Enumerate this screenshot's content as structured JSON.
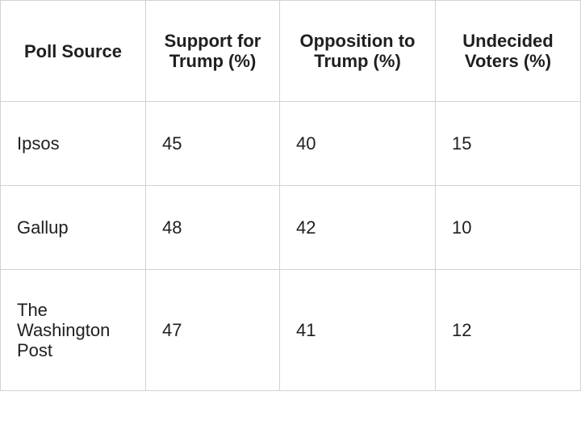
{
  "table": {
    "headers": [
      "Poll Source",
      "Support for Trump (%)",
      "Opposition to Trump (%)",
      "Undecided Voters (%)"
    ],
    "rows": [
      [
        "Ipsos",
        "45",
        "40",
        "15"
      ],
      [
        "Gallup",
        "48",
        "42",
        "10"
      ],
      [
        "The Washington Post",
        "47",
        "41",
        "12"
      ]
    ]
  },
  "chart_data": {
    "type": "table",
    "columns": [
      "Poll Source",
      "Support for Trump (%)",
      "Opposition to Trump (%)",
      "Undecided Voters (%)"
    ],
    "rows": [
      {
        "poll_source": "Ipsos",
        "support_pct": 45,
        "opposition_pct": 40,
        "undecided_pct": 15
      },
      {
        "poll_source": "Gallup",
        "support_pct": 48,
        "opposition_pct": 42,
        "undecided_pct": 10
      },
      {
        "poll_source": "The Washington Post",
        "support_pct": 47,
        "opposition_pct": 41,
        "undecided_pct": 12
      }
    ],
    "title": "",
    "notes": "Static poll results table; header row bold and centered, data cells left-aligned"
  },
  "colors": {
    "border": "#d2d2d2",
    "text": "#1f1f1f",
    "background": "#ffffff"
  }
}
